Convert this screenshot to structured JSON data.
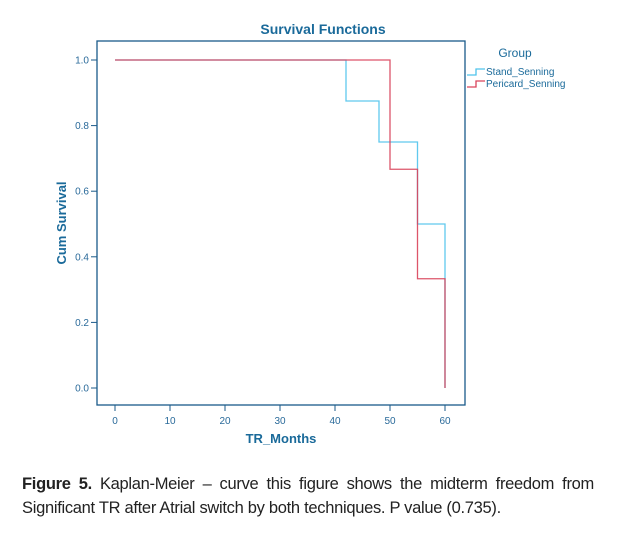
{
  "chart_data": {
    "type": "line",
    "subtype": "kaplan-meier step",
    "title": "Survival Functions",
    "xlabel": "TR_Months",
    "ylabel": "Cum Survival",
    "xlim": [
      0,
      60
    ],
    "ylim": [
      0,
      1.0
    ],
    "xticks": [
      "0",
      "10",
      "20",
      "30",
      "40",
      "50",
      "60"
    ],
    "yticks": [
      "0.0",
      "0.2",
      "0.4",
      "0.6",
      "0.8",
      "1.0"
    ],
    "legend_title": "Group",
    "legend_position": "right",
    "series": [
      {
        "name": "Stand_Senning",
        "color": "#4fc3ec",
        "steps": [
          [
            0,
            1.0
          ],
          [
            42,
            0.875
          ],
          [
            48,
            0.75
          ],
          [
            55,
            0.5
          ],
          [
            60,
            0.0
          ]
        ],
        "end": 60
      },
      {
        "name": "Pericard_Senning",
        "color": "#d9435a",
        "steps": [
          [
            0,
            1.0
          ],
          [
            50,
            0.667
          ],
          [
            55,
            0.333
          ],
          [
            60,
            0.0
          ]
        ],
        "end": 60
      }
    ]
  },
  "caption": {
    "label": "Figure 5.",
    "text": " Kaplan-Meier – curve this figure shows the midterm freedom from Significant TR after Atrial switch by both techniques. P value (0.735)."
  }
}
